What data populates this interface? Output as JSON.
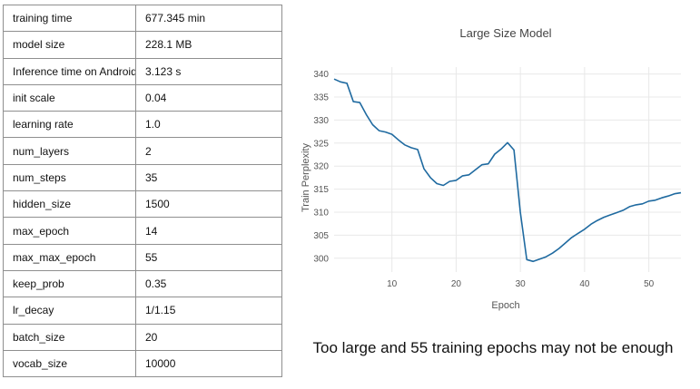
{
  "table": {
    "rows": [
      {
        "key": "training time",
        "value": "677.345 min"
      },
      {
        "key": "model size",
        "value": "228.1 MB"
      },
      {
        "key": "Inference time on Android",
        "value": "3.123 s"
      },
      {
        "key": "init scale",
        "value": "0.04"
      },
      {
        "key": "learning rate",
        "value": "1.0"
      },
      {
        "key": "num_layers",
        "value": "2"
      },
      {
        "key": "num_steps",
        "value": "35"
      },
      {
        "key": "hidden_size",
        "value": "1500"
      },
      {
        "key": "max_epoch",
        "value": "14"
      },
      {
        "key": "max_max_epoch",
        "value": "55"
      },
      {
        "key": "keep_prob",
        "value": "0.35"
      },
      {
        "key": "lr_decay",
        "value": "1/1.15"
      },
      {
        "key": "batch_size",
        "value": "20"
      },
      {
        "key": "vocab_size",
        "value": "10000"
      }
    ]
  },
  "chart_data": {
    "type": "line",
    "title": "Large Size Model",
    "xlabel": "Epoch",
    "ylabel": "Train Perplexity",
    "xlim": [
      1,
      55
    ],
    "ylim": [
      297,
      341.5
    ],
    "xticks": [
      10,
      20,
      30,
      40,
      50
    ],
    "yticks": [
      300,
      305,
      310,
      315,
      320,
      325,
      330,
      335,
      340
    ],
    "grid": true,
    "color": "#1f6aa0",
    "series": [
      {
        "x": [
          1,
          2,
          3,
          4,
          5,
          6,
          7,
          8,
          9,
          10,
          11,
          12,
          13,
          14,
          15,
          16,
          17,
          18,
          19,
          20,
          21,
          22,
          23,
          24,
          25,
          26,
          27,
          28,
          29,
          30,
          31,
          32,
          33,
          34,
          35,
          36,
          37,
          38,
          39,
          40,
          41,
          42,
          43,
          44,
          45,
          46,
          47,
          48,
          49,
          50,
          51,
          52,
          53,
          54,
          55
        ],
        "y": [
          338.9,
          338.3,
          338.0,
          334.0,
          333.8,
          331.2,
          329.0,
          327.7,
          327.4,
          326.9,
          325.7,
          324.6,
          324.0,
          323.6,
          319.4,
          317.5,
          316.2,
          315.8,
          316.7,
          316.9,
          317.9,
          318.1,
          319.2,
          320.3,
          320.5,
          322.6,
          323.7,
          325.1,
          323.5,
          310.0,
          299.7,
          299.3,
          299.8,
          300.3,
          301.1,
          302.1,
          303.3,
          304.5,
          305.4,
          306.3,
          307.4,
          308.2,
          308.9,
          309.4,
          309.9,
          310.4,
          311.2,
          311.6,
          311.8,
          312.4,
          312.6,
          313.1,
          313.5,
          314.0,
          314.2
        ]
      }
    ]
  },
  "caption": "Too large and 55 training epochs may not be enough"
}
